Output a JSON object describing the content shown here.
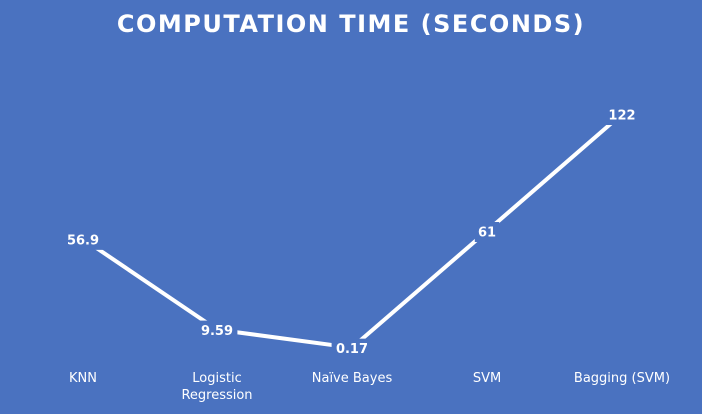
{
  "chart_data": {
    "type": "line",
    "title": "COMPUTATION TIME (SECONDS)",
    "categories": [
      [
        "KNN"
      ],
      [
        "Logistic",
        "Regression"
      ],
      [
        "Naïve Bayes"
      ],
      [
        "SVM"
      ],
      [
        "Bagging (SVM)"
      ]
    ],
    "values": [
      56.9,
      9.59,
      0.17,
      61,
      122
    ],
    "value_labels": [
      "56.9",
      "9.59",
      "0.17",
      "61",
      "122"
    ],
    "ylim": [
      0,
      122
    ],
    "drop_lines": true,
    "grid": false,
    "legend": "none",
    "colors": {
      "background": "#4a72c0",
      "line": "#ffffff",
      "text": "#ffffff"
    }
  }
}
